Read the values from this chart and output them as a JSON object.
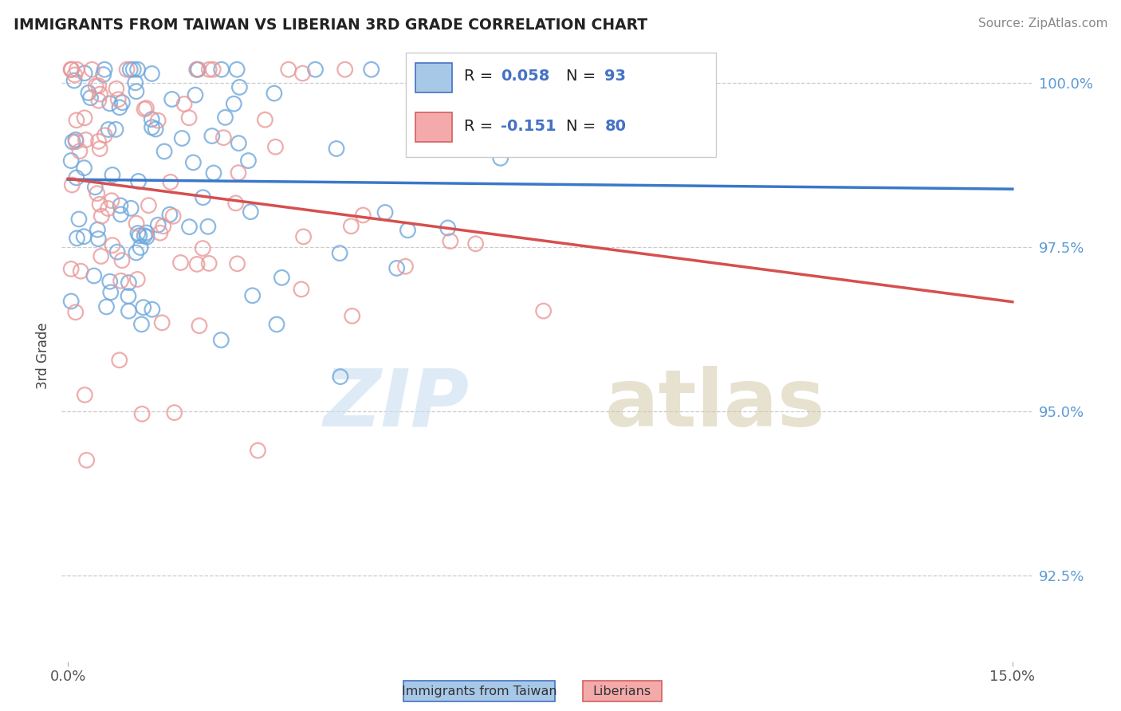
{
  "title": "IMMIGRANTS FROM TAIWAN VS LIBERIAN 3RD GRADE CORRELATION CHART",
  "source_text": "Source: ZipAtlas.com",
  "ylabel": "3rd Grade",
  "xlim": [
    0.0,
    0.15
  ],
  "ylim": [
    0.912,
    1.005
  ],
  "xtick_labels": [
    "0.0%",
    "15.0%"
  ],
  "ytick_labels": [
    "92.5%",
    "95.0%",
    "97.5%",
    "100.0%"
  ],
  "ytick_values": [
    0.925,
    0.95,
    0.975,
    1.0
  ],
  "color_taiwan": "#6fa8dc",
  "color_liberian": "#ea9999",
  "trend_color_taiwan": "#3a78c9",
  "trend_color_liberian": "#d64f4f",
  "legend_r1": "R = 0.058",
  "legend_n1": "N = 93",
  "legend_r2": "R = -0.151",
  "legend_n2": "N = 80"
}
